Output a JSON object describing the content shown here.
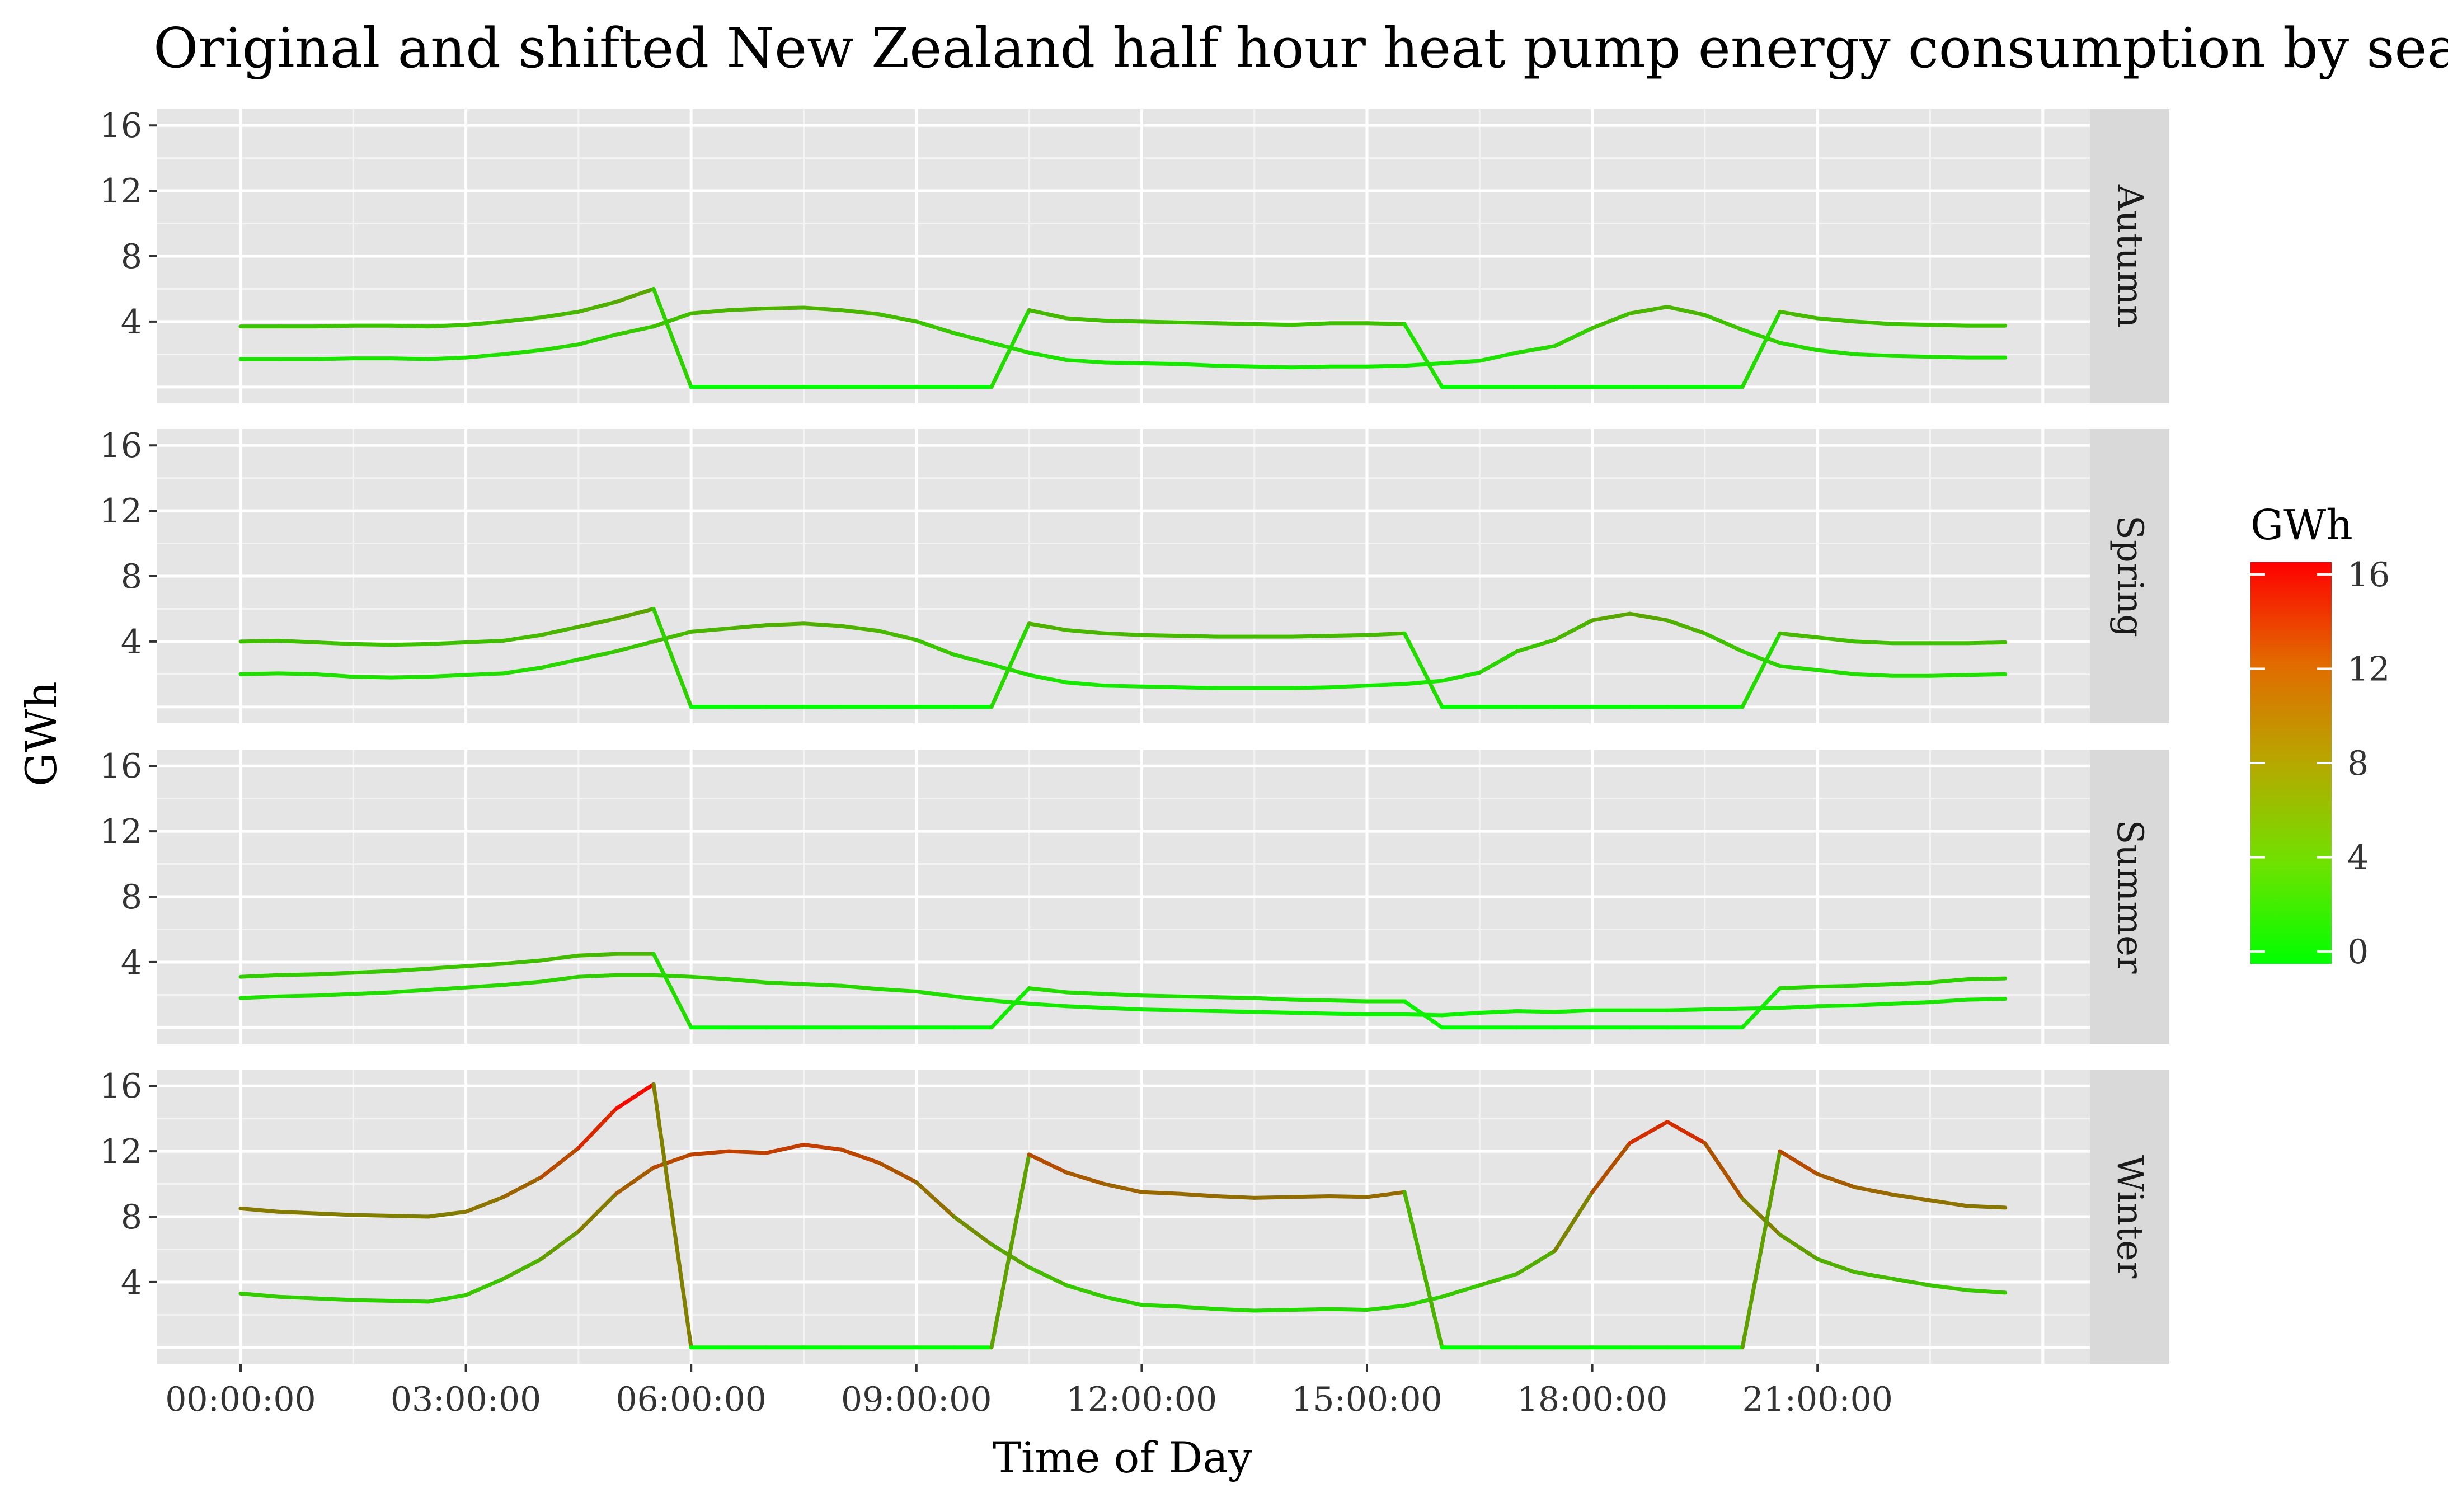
{
  "chart_data": {
    "type": "line",
    "title": "Original and shifted New Zealand half hour heat pump energy consumption by season fo",
    "xlabel": "Time of Day",
    "ylabel": "GWh",
    "ylim": [
      -1,
      17
    ],
    "yticks": [
      4,
      8,
      12,
      16
    ],
    "xticks": [
      "00:00:00",
      "03:00:00",
      "06:00:00",
      "09:00:00",
      "12:00:00",
      "15:00:00",
      "18:00:00",
      "21:00:00"
    ],
    "x_hours": [
      0,
      0.5,
      1,
      1.5,
      2,
      2.5,
      3,
      3.5,
      4,
      4.5,
      5,
      5.5,
      6,
      6.5,
      7,
      7.5,
      8,
      8.5,
      9,
      9.5,
      10,
      10.5,
      11,
      11.5,
      12,
      12.5,
      13,
      13.5,
      14,
      14.5,
      15,
      15.5,
      16,
      16.5,
      17,
      17.5,
      18,
      18.5,
      19,
      19.5,
      20,
      20.5,
      21,
      21.5,
      22,
      22.5,
      23,
      23.5
    ],
    "facets": [
      {
        "label": "Autumn",
        "series": [
          {
            "values": [
              1.7,
              1.7,
              1.7,
              1.75,
              1.75,
              1.7,
              1.8,
              2.0,
              2.25,
              2.6,
              3.2,
              3.7,
              4.5,
              4.7,
              4.8,
              4.85,
              4.7,
              4.45,
              4.0,
              3.3,
              2.7,
              2.1,
              1.65,
              1.5,
              1.45,
              1.4,
              1.3,
              1.25,
              1.2,
              1.25,
              1.25,
              1.3,
              1.45,
              1.6,
              2.1,
              2.5,
              3.6,
              4.5,
              4.9,
              4.4,
              3.5,
              2.7,
              2.25,
              2.0,
              1.9,
              1.85,
              1.8,
              1.8
            ]
          },
          {
            "values": [
              3.7,
              3.7,
              3.7,
              3.75,
              3.75,
              3.7,
              3.8,
              4.0,
              4.25,
              4.6,
              5.2,
              6.0,
              0,
              0,
              0,
              0,
              0,
              0,
              0,
              0,
              0,
              4.7,
              4.2,
              4.05,
              4.0,
              3.95,
              3.9,
              3.85,
              3.8,
              3.9,
              3.9,
              3.85,
              0,
              0,
              0,
              0,
              0,
              0,
              0,
              0,
              0,
              4.6,
              4.2,
              4.0,
              3.85,
              3.8,
              3.75,
              3.75
            ]
          }
        ]
      },
      {
        "label": "Spring",
        "series": [
          {
            "values": [
              2.0,
              2.05,
              2.0,
              1.85,
              1.8,
              1.85,
              1.95,
              2.05,
              2.4,
              2.9,
              3.4,
              4.0,
              4.6,
              4.8,
              5.0,
              5.1,
              4.95,
              4.65,
              4.1,
              3.2,
              2.6,
              1.95,
              1.5,
              1.3,
              1.25,
              1.2,
              1.15,
              1.15,
              1.15,
              1.2,
              1.3,
              1.4,
              1.6,
              2.1,
              3.4,
              4.1,
              5.3,
              5.7,
              5.3,
              4.5,
              3.4,
              2.5,
              2.25,
              2.0,
              1.9,
              1.9,
              1.95,
              2.0
            ]
          },
          {
            "values": [
              4.0,
              4.05,
              3.95,
              3.85,
              3.8,
              3.85,
              3.95,
              4.05,
              4.4,
              4.9,
              5.4,
              6.0,
              0,
              0,
              0,
              0,
              0,
              0,
              0,
              0,
              0,
              5.1,
              4.7,
              4.5,
              4.4,
              4.35,
              4.3,
              4.3,
              4.3,
              4.35,
              4.4,
              4.5,
              0,
              0,
              0,
              0,
              0,
              0,
              0,
              0,
              0,
              4.5,
              4.25,
              4.0,
              3.9,
              3.9,
              3.9,
              3.95
            ]
          }
        ]
      },
      {
        "label": "Summer",
        "series": [
          {
            "values": [
              1.8,
              1.9,
              1.95,
              2.05,
              2.15,
              2.3,
              2.45,
              2.6,
              2.8,
              3.1,
              3.2,
              3.2,
              3.1,
              2.95,
              2.75,
              2.65,
              2.55,
              2.35,
              2.2,
              1.9,
              1.65,
              1.45,
              1.3,
              1.2,
              1.1,
              1.05,
              1.0,
              0.95,
              0.9,
              0.85,
              0.8,
              0.8,
              0.75,
              0.9,
              1.0,
              0.95,
              1.05,
              1.05,
              1.05,
              1.1,
              1.15,
              1.2,
              1.3,
              1.35,
              1.45,
              1.55,
              1.7,
              1.75
            ]
          },
          {
            "values": [
              3.1,
              3.2,
              3.25,
              3.35,
              3.45,
              3.6,
              3.75,
              3.9,
              4.1,
              4.4,
              4.5,
              4.5,
              0,
              0,
              0,
              0,
              0,
              0,
              0,
              0,
              0,
              2.4,
              2.15,
              2.05,
              1.95,
              1.9,
              1.85,
              1.8,
              1.7,
              1.65,
              1.6,
              1.6,
              0,
              0,
              0,
              0,
              0,
              0,
              0,
              0,
              0,
              2.4,
              2.5,
              2.55,
              2.65,
              2.75,
              2.95,
              3.0
            ]
          }
        ]
      },
      {
        "label": "Winter",
        "series": [
          {
            "values": [
              3.3,
              3.1,
              3.0,
              2.9,
              2.85,
              2.8,
              3.2,
              4.2,
              5.4,
              7.1,
              9.4,
              11.0,
              11.8,
              12.0,
              11.9,
              12.4,
              12.1,
              11.3,
              10.1,
              8.0,
              6.3,
              4.9,
              3.8,
              3.1,
              2.6,
              2.5,
              2.35,
              2.25,
              2.3,
              2.35,
              2.3,
              2.55,
              3.1,
              3.8,
              4.5,
              5.9,
              9.5,
              12.5,
              13.8,
              12.5,
              9.1,
              6.9,
              5.4,
              4.6,
              4.2,
              3.8,
              3.5,
              3.35
            ]
          },
          {
            "values": [
              8.5,
              8.3,
              8.2,
              8.1,
              8.05,
              8.0,
              8.3,
              9.2,
              10.4,
              12.2,
              14.6,
              16.1,
              0,
              0,
              0,
              0,
              0,
              0,
              0,
              0,
              0,
              11.8,
              10.7,
              10.0,
              9.5,
              9.4,
              9.25,
              9.15,
              9.2,
              9.25,
              9.2,
              9.5,
              0,
              0,
              0,
              0,
              0,
              0,
              0,
              0,
              0,
              12.0,
              10.6,
              9.8,
              9.35,
              9.0,
              8.65,
              8.55
            ]
          }
        ]
      }
    ],
    "color_scale": {
      "title": "GWh",
      "min": 0,
      "max": 16,
      "low_color": "#00ff00",
      "high_color": "#ff0000",
      "ticks": [
        0,
        4,
        8,
        12,
        16
      ]
    },
    "grid": true,
    "legend_position": "right"
  }
}
